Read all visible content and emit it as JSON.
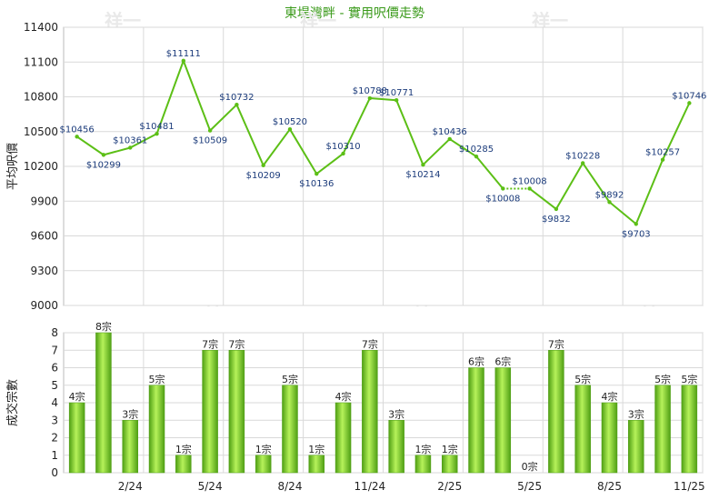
{
  "title": "東堤灣畔 - 實用呎價走勢",
  "colors": {
    "line": "#5cbf16",
    "bar_dark": "#4f9f14",
    "bar_light": "#b6f25a",
    "grid": "#d9d9d9",
    "title": "#3a9a1a"
  },
  "chart_data": [
    {
      "type": "line",
      "title": "東堤灣畔 - 實用呎價走勢",
      "ylabel": "平均呎價",
      "ylim": [
        9000,
        11400
      ],
      "yticks": [
        9000,
        9300,
        9600,
        9900,
        10200,
        10500,
        10800,
        11100,
        11400
      ],
      "points": [
        10456,
        10299,
        10361,
        10481,
        11111,
        10509,
        10732,
        10209,
        10520,
        10136,
        10310,
        10788,
        10771,
        10214,
        10436,
        10285,
        10008,
        10008,
        9832,
        10228,
        9892,
        9703,
        10257,
        10746
      ],
      "labels": [
        "$10456",
        "$10299",
        "$10361",
        "$10481",
        "$11111",
        "$10509",
        "$10732",
        "$10209",
        "$10520",
        "$10136",
        "$10310",
        "$10788",
        "$10771",
        "$10214",
        "$10436",
        "$10285",
        "$10008",
        "$10008",
        "$9832",
        "$10228",
        "$9892",
        "$9703",
        "$10257",
        "$10746"
      ],
      "dotted_segments": [
        16
      ]
    },
    {
      "type": "bar",
      "ylabel": "成交宗數",
      "ylim": [
        0,
        8
      ],
      "yticks": [
        0,
        1,
        2,
        3,
        4,
        5,
        6,
        7,
        8
      ],
      "values": [
        4,
        8,
        3,
        5,
        1,
        7,
        7,
        1,
        5,
        1,
        4,
        7,
        3,
        1,
        1,
        6,
        6,
        0,
        7,
        5,
        4,
        3,
        5,
        5
      ],
      "labels": [
        "4宗",
        "8宗",
        "3宗",
        "5宗",
        "1宗",
        "7宗",
        "7宗",
        "1宗",
        "5宗",
        "1宗",
        "4宗",
        "7宗",
        "3宗",
        "1宗",
        "1宗",
        "6宗",
        "6宗",
        "0宗",
        "7宗",
        "5宗",
        "4宗",
        "3宗",
        "5宗",
        "5宗"
      ]
    }
  ],
  "x_axis": {
    "tick_indices": [
      2,
      5,
      8,
      11,
      14,
      17,
      20,
      23
    ],
    "tick_labels": [
      "2/24",
      "5/24",
      "8/24",
      "11/24",
      "2/25",
      "5/25",
      "8/25",
      "11/25"
    ]
  },
  "watermark": "祥一"
}
